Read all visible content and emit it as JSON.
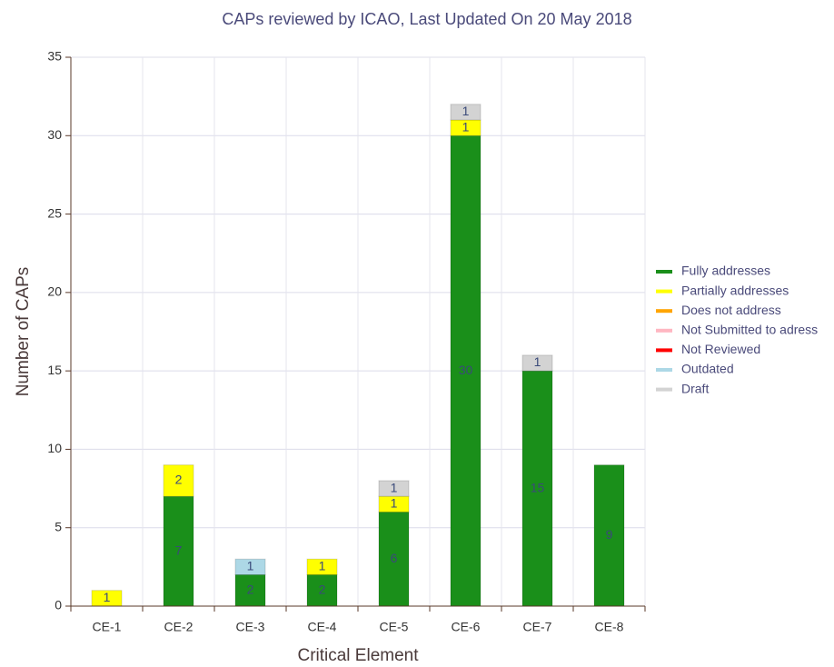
{
  "chart_data": {
    "type": "stacked_bar",
    "title": "CAPs reviewed by ICAO, Last Updated On 20 May 2018",
    "x_label": "Critical Element",
    "y_label": "Number of CAPs",
    "categories": [
      "CE-1",
      "CE-2",
      "CE-3",
      "CE-4",
      "CE-5",
      "CE-6",
      "CE-7",
      "CE-8"
    ],
    "series": [
      {
        "name": "Fully addresses",
        "color": "#1a8f1a",
        "values": [
          null,
          7,
          2,
          2,
          6,
          30,
          15,
          9
        ]
      },
      {
        "name": "Partially addresses",
        "color": "#ffff00",
        "values": [
          1,
          2,
          null,
          1,
          1,
          1,
          null,
          null
        ]
      },
      {
        "name": "Does not address",
        "color": "#ffa500",
        "values": [
          null,
          null,
          null,
          null,
          null,
          null,
          null,
          null
        ]
      },
      {
        "name": "Not Submitted to adress",
        "color": "#ffb6c1",
        "values": [
          null,
          null,
          null,
          null,
          null,
          null,
          null,
          null
        ]
      },
      {
        "name": "Not Reviewed",
        "color": "#ff0000",
        "values": [
          null,
          null,
          null,
          null,
          null,
          null,
          null,
          null
        ]
      },
      {
        "name": "Outdated",
        "color": "#add8e6",
        "values": [
          null,
          null,
          1,
          null,
          null,
          null,
          null,
          null
        ]
      },
      {
        "name": "Draft",
        "color": "#d3d3d3",
        "values": [
          null,
          null,
          null,
          null,
          1,
          1,
          1,
          null
        ]
      }
    ],
    "ylim": [
      0,
      35
    ],
    "yticks": [
      0,
      5,
      10,
      15,
      20,
      25,
      30,
      35
    ],
    "grid": true,
    "legend": "right"
  }
}
